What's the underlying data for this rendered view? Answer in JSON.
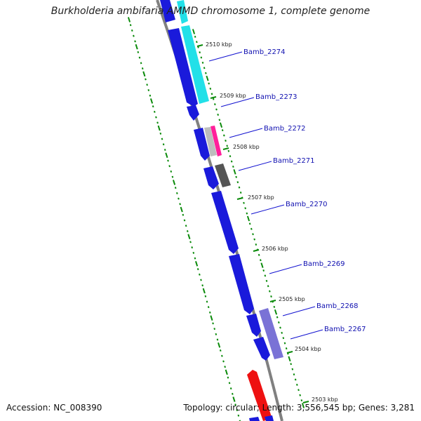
{
  "title": "Burkholderia ambifaria AMMD chromosome 1, complete genome",
  "footer": {
    "accession": "Accession: NC_008390",
    "topology": "Topology: circular; Length: 3,556,545 bp; Genes: 3,281"
  },
  "colors": {
    "forward_gene": "#1a1adb",
    "reverse_gene": "#22e0e8",
    "pink_feature": "#ff1f9a",
    "grey_feature": "#555555",
    "light_grey_feature": "#bdbdbd",
    "purple_feature": "#7a72d6",
    "red_feature": "#ee1111",
    "backbone": "#808080",
    "tick": "#0a8a0a"
  },
  "scale_labels": [
    "2510 kbp",
    "2509 kbp",
    "2508 kbp",
    "2507 kbp",
    "2506 kbp",
    "2505 kbp",
    "2504 kbp",
    "2503 kbp"
  ],
  "genes": [
    {
      "id": "Bamb_2274"
    },
    {
      "id": "Bamb_2273"
    },
    {
      "id": "Bamb_2272"
    },
    {
      "id": "Bamb_2271"
    },
    {
      "id": "Bamb_2270"
    },
    {
      "id": "Bamb_2269"
    },
    {
      "id": "Bamb_2268"
    },
    {
      "id": "Bamb_2267"
    }
  ]
}
